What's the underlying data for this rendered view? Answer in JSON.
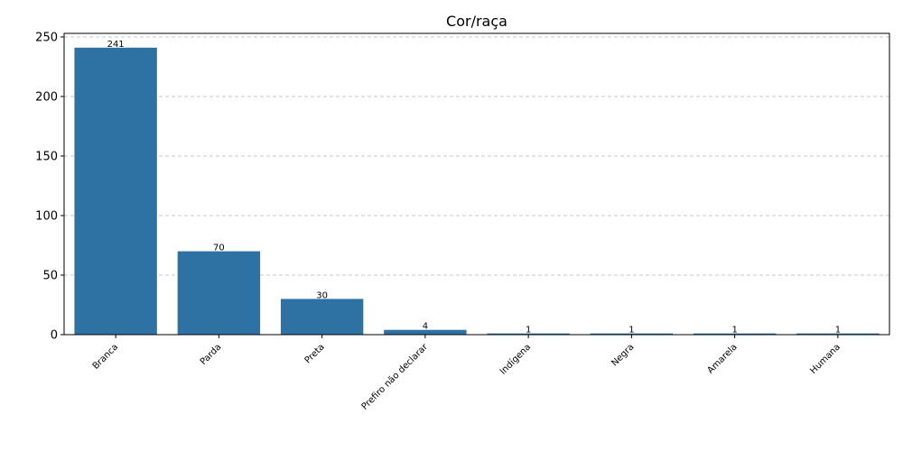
{
  "chart_data": {
    "type": "bar",
    "title": "Cor/raça",
    "categories": [
      "Branca",
      "Parda",
      "Preta",
      "Prefiro não declarar",
      "Indígena",
      "Negra",
      "Amarela",
      "Humana"
    ],
    "values": [
      241,
      70,
      30,
      4,
      1,
      1,
      1,
      1
    ],
    "data_labels": [
      "241",
      "70",
      "30",
      "4",
      "1",
      "1",
      "1",
      "1"
    ],
    "yticks": [
      0,
      50,
      100,
      150,
      200,
      250
    ],
    "ylim": [
      0,
      253
    ],
    "grid": "y-dashed",
    "bar_color": "#2e72a3"
  }
}
